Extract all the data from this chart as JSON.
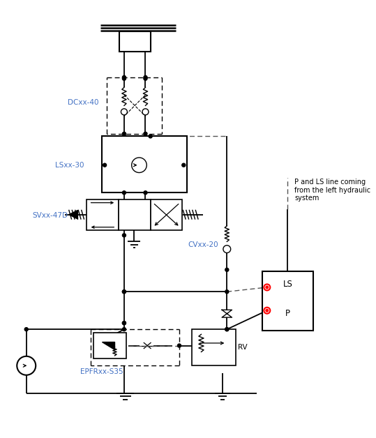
{
  "bg_color": "#ffffff",
  "lc": "#000000",
  "bc": "#4472C4",
  "rc": "#FF0000",
  "labels": {
    "DCxx40": "DCxx-40",
    "LSxx30": "LSxx-30",
    "SVxx47D": "SVxx-47D",
    "CVxx20": "CVxx-20",
    "EPFRxx": "EPFRxx-S35",
    "RV": "RV",
    "LS": "LS",
    "P": "P",
    "annotation": "P and LS line coming\nfrom the left hydraulic\nsystem"
  },
  "figsize": [
    5.39,
    6.28
  ],
  "dpi": 100
}
